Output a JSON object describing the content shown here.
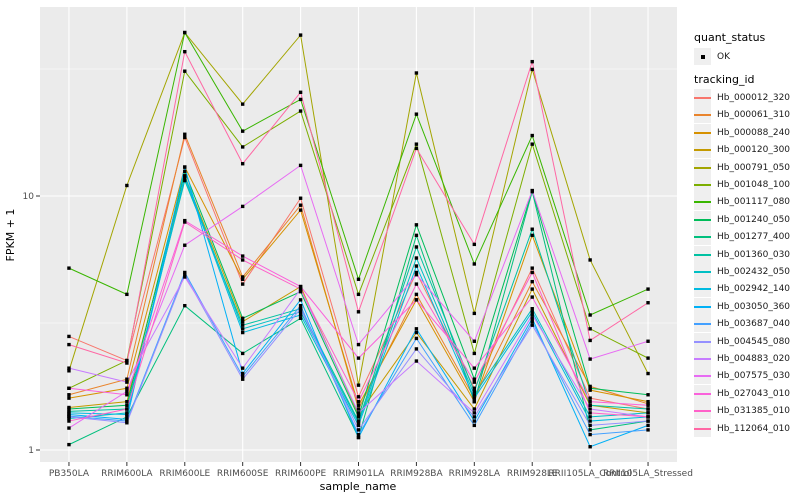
{
  "figure": {
    "background": "#ffffff",
    "panel_background": "#ebebeb",
    "gridline_color": "#ffffff",
    "tick_color": "#333333",
    "tick_label_color": "#4d4d4d"
  },
  "legend": {
    "quant_status_title": "quant_status",
    "quant_status_items": [
      "OK"
    ],
    "tracking_title": "tracking_id"
  },
  "chart_data": {
    "type": "line",
    "title": "",
    "xlabel": "sample_name",
    "ylabel": "FPKM + 1",
    "yscale": "log10",
    "ylim": [
      0.88,
      55
    ],
    "yticks": [
      {
        "label": "1",
        "value": 1
      },
      {
        "label": "10",
        "value": 10
      }
    ],
    "y_minor_gridlines": [
      3.162,
      31.62
    ],
    "y_major_gridlines": [
      1,
      10
    ],
    "grid": "on",
    "legend_position": "right",
    "point_marker": "black-square",
    "categories": [
      "PB350LA",
      "RRIM600LA",
      "RRIM600LE",
      "RRIM600SE",
      "RRIM600PE",
      "RRIM901LA",
      "RRIM928BA",
      "RRIM928LA",
      "RRIM928LE",
      "RRII105LA_Control",
      "RRII105LA_Stressed"
    ],
    "series": [
      {
        "name": "Hb_000012_320",
        "color": "#F8766D",
        "values": [
          2.8,
          2.25,
          17.0,
          4.5,
          9.8,
          1.62,
          5.0,
          1.75,
          5.2,
          1.6,
          1.45
        ]
      },
      {
        "name": "Hb_000061_310",
        "color": "#E9842C",
        "values": [
          1.65,
          1.9,
          17.5,
          4.8,
          9.2,
          1.45,
          4.1,
          1.6,
          4.6,
          1.78,
          1.52
        ]
      },
      {
        "name": "Hb_000088_240",
        "color": "#D69100",
        "values": [
          1.6,
          1.75,
          13.0,
          4.7,
          8.8,
          1.5,
          3.9,
          1.55,
          7.0,
          1.72,
          1.55
        ]
      },
      {
        "name": "Hb_000120_300",
        "color": "#C49A00",
        "values": [
          1.47,
          1.55,
          12.0,
          3.2,
          4.4,
          1.38,
          2.9,
          1.45,
          4.3,
          1.5,
          1.4
        ]
      },
      {
        "name": "Hb_000791_050",
        "color": "#A3A500",
        "values": [
          2.05,
          11.0,
          44.0,
          23.0,
          43.0,
          1.8,
          30.5,
          3.45,
          31.5,
          5.6,
          2.0
        ]
      },
      {
        "name": "Hb_001048_100",
        "color": "#7CAE00",
        "values": [
          1.75,
          2.25,
          31.0,
          15.6,
          21.6,
          4.1,
          16.0,
          2.4,
          16.0,
          3.0,
          2.3
        ]
      },
      {
        "name": "Hb_001117_080",
        "color": "#39B600",
        "values": [
          5.2,
          4.1,
          44.0,
          18.0,
          24.0,
          4.7,
          21.0,
          5.4,
          17.3,
          3.4,
          4.3
        ]
      },
      {
        "name": "Hb_001240_050",
        "color": "#00BC59",
        "values": [
          1.45,
          1.5,
          12.5,
          3.3,
          4.2,
          1.35,
          7.7,
          1.9,
          10.5,
          1.75,
          1.65
        ]
      },
      {
        "name": "Hb_001277_400",
        "color": "#00BF7D",
        "values": [
          1.05,
          1.35,
          3.7,
          2.4,
          3.3,
          1.12,
          7.0,
          1.55,
          10.4,
          1.2,
          1.3
        ]
      },
      {
        "name": "Hb_001360_030",
        "color": "#00C1A2",
        "values": [
          1.42,
          1.45,
          11.5,
          3.1,
          3.6,
          1.3,
          6.3,
          1.7,
          7.4,
          1.5,
          1.45
        ]
      },
      {
        "name": "Hb_002432_050",
        "color": "#00BFC4",
        "values": [
          1.33,
          1.4,
          12.0,
          3.0,
          3.5,
          1.28,
          5.7,
          1.65,
          3.6,
          1.35,
          1.4
        ]
      },
      {
        "name": "Hb_002942_140",
        "color": "#00BAE0",
        "values": [
          1.4,
          1.38,
          11.8,
          2.9,
          3.4,
          1.25,
          5.3,
          1.6,
          3.5,
          1.3,
          1.35
        ]
      },
      {
        "name": "Hb_003050_360",
        "color": "#00B0F6",
        "values": [
          1.38,
          1.32,
          13.0,
          2.0,
          3.9,
          1.12,
          3.0,
          1.3,
          3.3,
          1.03,
          1.25
        ]
      },
      {
        "name": "Hb_003687_040",
        "color": "#43A0FF",
        "values": [
          1.36,
          1.3,
          5.0,
          1.95,
          3.7,
          1.15,
          2.75,
          1.25,
          3.2,
          1.15,
          1.2
        ]
      },
      {
        "name": "Hb_004545_080",
        "color": "#9590FF",
        "values": [
          1.35,
          1.28,
          4.9,
          1.9,
          3.6,
          1.2,
          2.5,
          1.35,
          3.1,
          1.25,
          1.3
        ]
      },
      {
        "name": "Hb_004883_020",
        "color": "#C77CFF",
        "values": [
          2.1,
          1.85,
          4.8,
          2.1,
          4.3,
          1.4,
          2.24,
          1.4,
          3.4,
          1.45,
          1.35
        ]
      },
      {
        "name": "Hb_007575_030",
        "color": "#E76BF3",
        "values": [
          1.22,
          1.7,
          6.4,
          9.1,
          13.2,
          2.6,
          4.9,
          2.68,
          10.5,
          2.28,
          2.68
        ]
      },
      {
        "name": "Hb_027043_010",
        "color": "#FA62DB",
        "values": [
          1.75,
          1.65,
          8.0,
          5.8,
          4.4,
          2.3,
          3.9,
          2.1,
          4.0,
          1.55,
          1.5
        ]
      },
      {
        "name": "Hb_031385_010",
        "color": "#FF61C9",
        "values": [
          1.3,
          1.45,
          7.9,
          5.6,
          4.3,
          1.55,
          4.5,
          1.85,
          5.0,
          1.4,
          1.35
        ]
      },
      {
        "name": "Hb_112064_010",
        "color": "#FF67A4",
        "values": [
          2.6,
          2.2,
          37.0,
          13.4,
          25.6,
          3.5,
          15.4,
          6.45,
          33.8,
          2.7,
          3.8
        ]
      }
    ]
  }
}
